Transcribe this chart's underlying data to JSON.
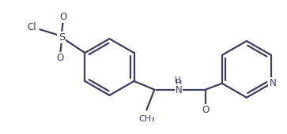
{
  "background_color": "#ffffff",
  "line_color": "#3d3d5c",
  "line_width": 1.6,
  "font_size": 8.5,
  "figsize": [
    3.63,
    1.7
  ],
  "dpi": 100,
  "xlim": [
    0,
    10.0
  ],
  "ylim": [
    0,
    4.7
  ]
}
